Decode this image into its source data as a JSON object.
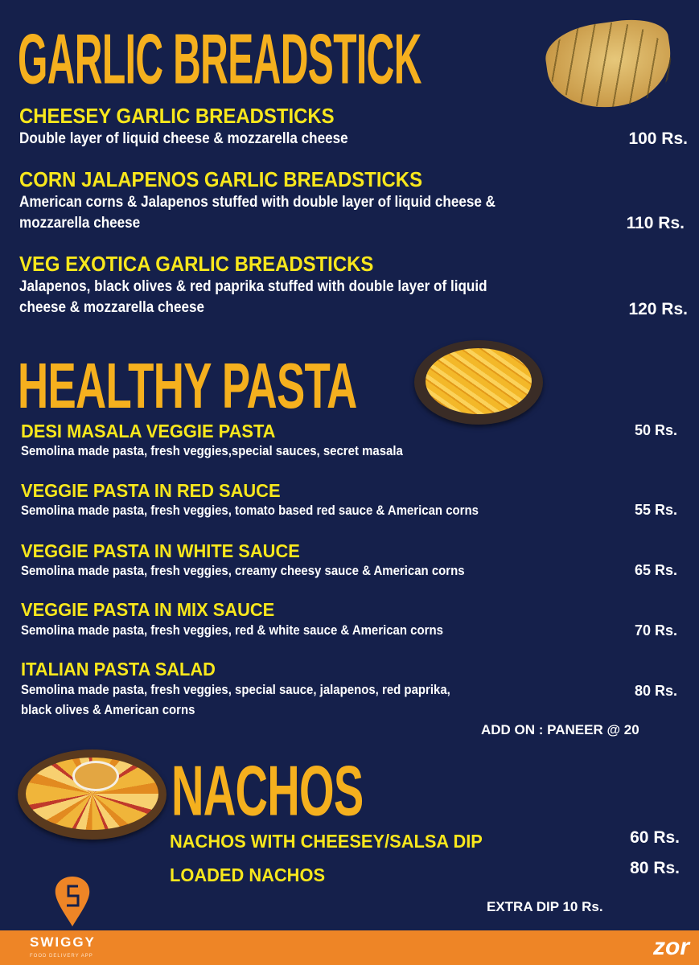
{
  "colors": {
    "background": "#15204b",
    "section_title": "#f5b01e",
    "item_name": "#f8e71c",
    "footer": "#ee8526"
  },
  "garlic": {
    "title": "GARLIC BREADSTICK",
    "items": [
      {
        "name": "CHEESEY GARLIC BREADSTICKS",
        "desc": "Double layer of liquid cheese & mozzarella cheese",
        "price": "100 Rs."
      },
      {
        "name": "CORN JALAPENOS GARLIC BREADSTICKS",
        "desc1": "American corns & Jalapenos stuffed with double layer of liquid cheese &",
        "desc2": "mozzarella cheese",
        "price": "110 Rs."
      },
      {
        "name": "VEG EXOTICA GARLIC BREADSTICKS",
        "desc1": "Jalapenos, black olives & red paprika stuffed with double layer of liquid",
        "desc2": "cheese & mozzarella cheese",
        "price": "120 Rs."
      }
    ]
  },
  "pasta": {
    "title": "HEALTHY PASTA",
    "items": [
      {
        "name": "DESI MASALA VEGGIE PASTA",
        "desc": "Semolina made pasta, fresh veggies,special sauces, secret masala",
        "price": "50 Rs."
      },
      {
        "name": "VEGGIE PASTA IN RED SAUCE",
        "desc": "Semolina made pasta, fresh veggies, tomato based red sauce & American corns",
        "price": "55 Rs."
      },
      {
        "name": "VEGGIE PASTA IN WHITE SAUCE",
        "desc": "Semolina made pasta, fresh veggies, creamy cheesy sauce & American corns",
        "price": "65 Rs."
      },
      {
        "name": "VEGGIE PASTA IN MIX SAUCE",
        "desc": "Semolina made pasta, fresh veggies, red & white sauce & American corns",
        "price": "70 Rs."
      },
      {
        "name": "ITALIAN PASTA SALAD",
        "desc1": "Semolina made pasta, fresh veggies, special sauce, jalapenos, red paprika,",
        "desc2": "black olives & American corns",
        "price": "80 Rs."
      }
    ],
    "addon": "ADD ON : PANEER @ 20"
  },
  "nachos": {
    "title": "NACHOS",
    "items": [
      {
        "name": "NACHOS WITH CHEESEY/SALSA DIP",
        "price": "60 Rs."
      },
      {
        "name": "LOADED NACHOS",
        "price": "80 Rs."
      }
    ],
    "extra": "EXTRA DIP  10 Rs."
  },
  "footer": {
    "brand": "SWIGGY",
    "tagline": "FOOD DELIVERY APP",
    "right_brand": "zor"
  }
}
